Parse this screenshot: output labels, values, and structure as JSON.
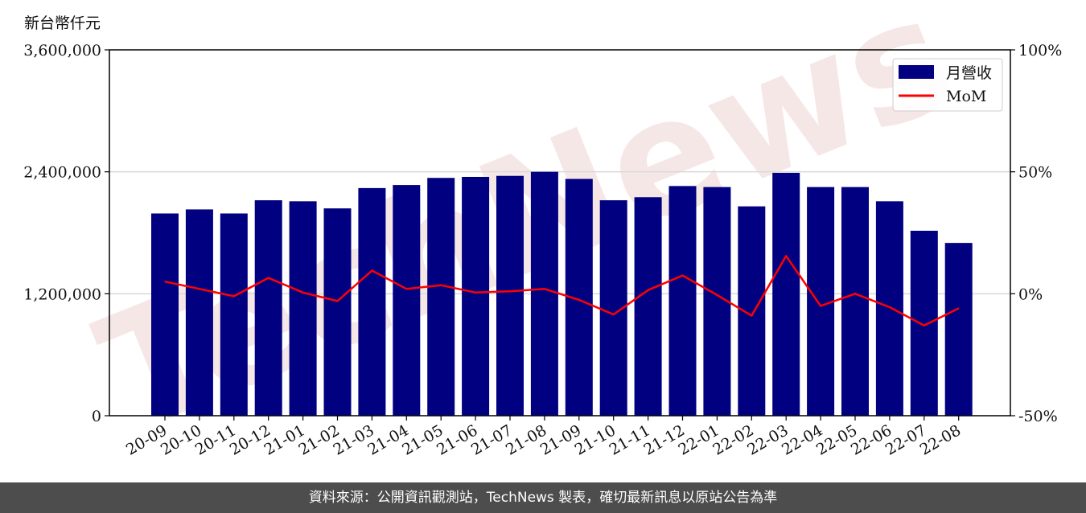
{
  "unit_label": "新台幣仟元",
  "footer": "資料來源：公開資訊觀測站，TechNews 製表，確切最新訊息以原站公告為準",
  "watermark": "TechNews",
  "colors": {
    "bar": "#000080",
    "line": "#ff0000",
    "grid": "#d9d9d9",
    "footer_bg": "#4d4d4d"
  },
  "chart_data": {
    "type": "bar",
    "categories": [
      "20-09",
      "20-10",
      "20-11",
      "20-12",
      "21-01",
      "21-02",
      "21-03",
      "21-04",
      "21-05",
      "21-06",
      "21-07",
      "21-08",
      "21-09",
      "21-10",
      "21-11",
      "21-12",
      "22-01",
      "22-02",
      "22-03",
      "22-04",
      "22-05",
      "22-06",
      "22-07",
      "22-08"
    ],
    "series": [
      {
        "name": "月營收",
        "type": "bar",
        "axis": "left",
        "values": [
          1990000,
          2030000,
          1990000,
          2120000,
          2110000,
          2040000,
          2240000,
          2270000,
          2340000,
          2350000,
          2360000,
          2400000,
          2330000,
          2120000,
          2150000,
          2260000,
          2250000,
          2060000,
          2390000,
          2250000,
          2250000,
          2110000,
          1820000,
          1700000
        ]
      },
      {
        "name": "MoM",
        "type": "line",
        "axis": "right",
        "values": [
          5,
          2,
          -1,
          6.5,
          0.5,
          -3,
          9.5,
          2,
          3.5,
          0.5,
          1,
          2,
          -2.5,
          -8.5,
          1.5,
          7.5,
          -0.5,
          -9,
          15.5,
          -5,
          0,
          -5.5,
          -13,
          -6
        ]
      }
    ],
    "y_left": {
      "min": 0,
      "max": 3600000,
      "ticks": [
        0,
        1200000,
        2400000,
        3600000
      ],
      "tick_labels": [
        "0",
        "1,200,000",
        "2,400,000",
        "3,600,000"
      ]
    },
    "y_right": {
      "min": -50,
      "max": 100,
      "ticks": [
        -50,
        0,
        50,
        100
      ],
      "tick_labels": [
        "-50%",
        "0%",
        "50%",
        "100%"
      ]
    },
    "grid": true,
    "legend_position": "top-right"
  }
}
